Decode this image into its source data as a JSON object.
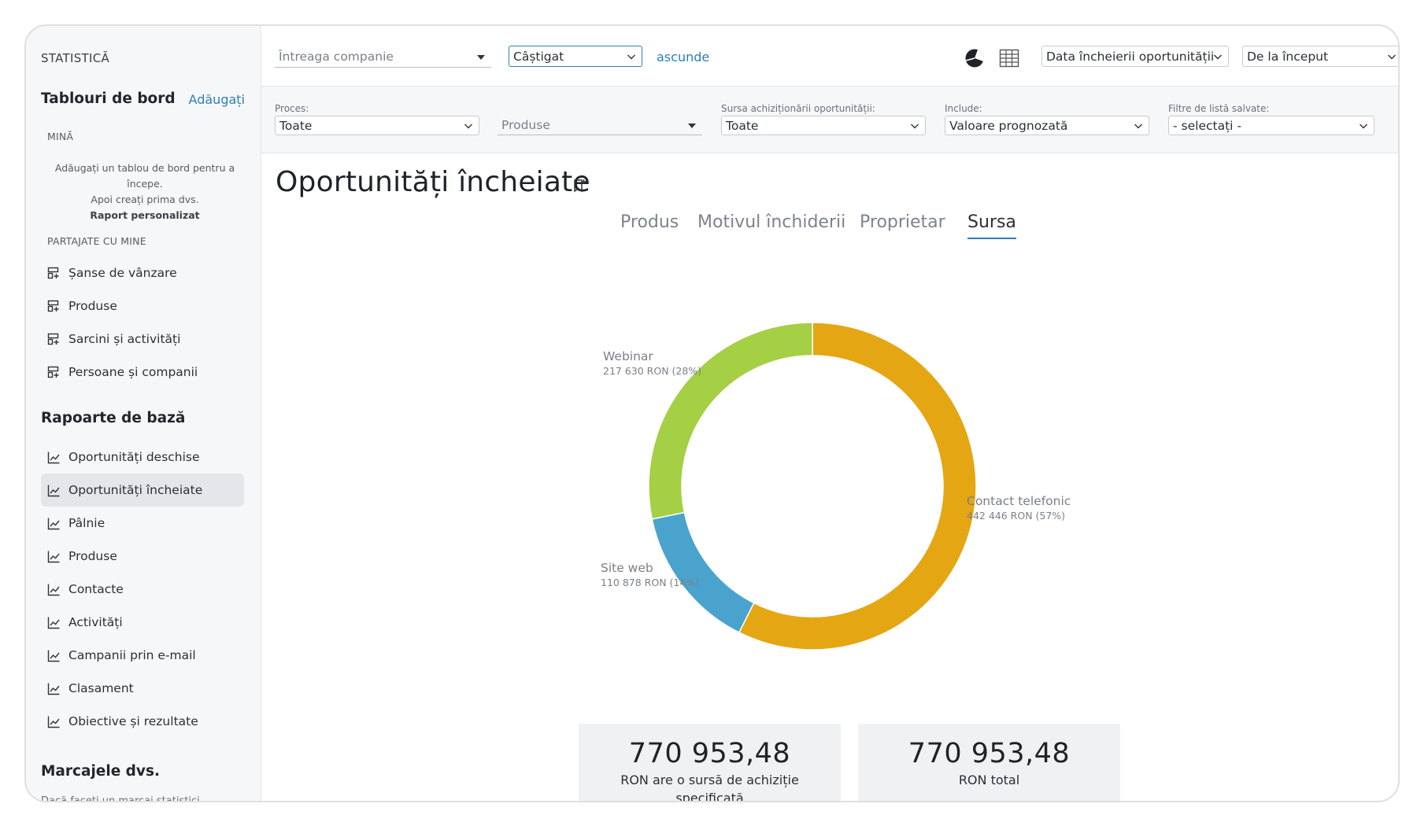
{
  "sidebar": {
    "kicker": "STATISTICĂ",
    "dashboards_title": "Tablouri de bord",
    "add_link": "Adăugați",
    "mine_section": "MINĂ",
    "help_line1": "Adăugați un tablou de bord pentru a începe.",
    "help_line2": "Apoi creați prima dvs.",
    "help_line3": "Raport personalizat",
    "shared_section": "PARTAJATE CU MINE",
    "shared_items": [
      {
        "label": "Șanse de vânzare"
      },
      {
        "label": "Produse"
      },
      {
        "label": "Sarcini și activități"
      },
      {
        "label": "Persoane și companii"
      }
    ],
    "basic_reports_title": "Rapoarte de bază",
    "report_items": [
      {
        "label": "Oportunități deschise"
      },
      {
        "label": "Oportunități încheiate"
      },
      {
        "label": "Pâlnie"
      },
      {
        "label": "Produse"
      },
      {
        "label": "Contacte"
      },
      {
        "label": "Activități"
      },
      {
        "label": "Campanii prin e-mail"
      },
      {
        "label": "Clasament"
      },
      {
        "label": "Obiective și rezultate"
      }
    ],
    "bookmarks_title": "Marcajele dvs.",
    "bookmarks_cut_text": "Dacă faceți un marcaj statistici"
  },
  "topbar": {
    "company_select": "Întreaga companie",
    "status_select": "Câștigat",
    "hide_link": "ascunde",
    "date_field_select": "Data încheierii oportunității",
    "period_select": "De la început"
  },
  "filters": {
    "process_label": "Proces:",
    "process_value": "Toate",
    "products_placeholder": "Produse",
    "source_label": "Sursa achiziționării oportunității:",
    "source_value": "Toate",
    "include_label": "Include:",
    "include_value": "Valoare prognozată",
    "saved_label": "Filtre de listă salvate:",
    "saved_value": "- selectați -"
  },
  "page": {
    "title": "Oportunități încheiate"
  },
  "tabs": [
    {
      "label": "Produs"
    },
    {
      "label": "Motivul închiderii"
    },
    {
      "label": "Proprietar"
    },
    {
      "label": "Sursa"
    }
  ],
  "active_tab": "Sursa",
  "chart_data": {
    "type": "pie",
    "donut": true,
    "series": [
      {
        "name": "Contact telefonic",
        "value": 442446,
        "display": "442 446 RON (57%)",
        "color": "#e4a612"
      },
      {
        "name": "Site web",
        "value": 110878,
        "display": "110 878 RON (14%)",
        "color": "#4aa3cd"
      },
      {
        "name": "Webinar",
        "value": 217630,
        "display": "217 630 RON (28%)",
        "color": "#a5cf44"
      }
    ]
  },
  "stats": [
    {
      "value": "770 953,48",
      "caption": "RON are o sursă de achiziție specificată"
    },
    {
      "value": "770 953,48",
      "caption": "RON total"
    }
  ]
}
